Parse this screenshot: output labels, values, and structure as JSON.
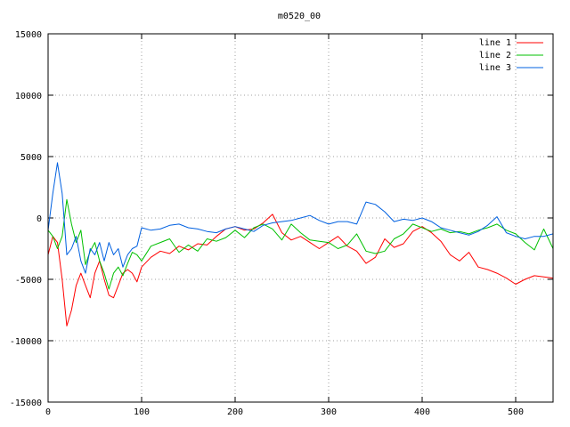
{
  "chart_data": {
    "type": "line",
    "title": "m0520_00",
    "xlabel": "",
    "ylabel": "",
    "xlim": [
      0,
      540
    ],
    "ylim": [
      -15000,
      15000
    ],
    "x_ticks": [
      0,
      100,
      200,
      300,
      400,
      500
    ],
    "y_ticks": [
      -15000,
      -10000,
      -5000,
      0,
      5000,
      10000,
      15000
    ],
    "grid": true,
    "legend_position": "top-right",
    "series": [
      {
        "name": "line 1",
        "color": "#ff0000",
        "x": [
          0,
          5,
          10,
          15,
          20,
          25,
          30,
          35,
          40,
          45,
          50,
          55,
          60,
          65,
          70,
          75,
          80,
          85,
          90,
          95,
          100,
          110,
          120,
          130,
          140,
          150,
          160,
          170,
          180,
          190,
          200,
          210,
          220,
          230,
          240,
          250,
          260,
          270,
          280,
          290,
          300,
          310,
          320,
          330,
          340,
          350,
          360,
          370,
          380,
          390,
          400,
          410,
          420,
          430,
          440,
          450,
          460,
          470,
          480,
          490,
          500,
          510,
          520,
          530,
          540
        ],
        "values": [
          -3000,
          -1500,
          -2000,
          -5000,
          -8800,
          -7500,
          -5500,
          -4500,
          -5500,
          -6500,
          -4500,
          -3500,
          -5000,
          -6300,
          -6500,
          -5500,
          -4500,
          -4200,
          -4500,
          -5200,
          -4000,
          -3200,
          -2700,
          -2900,
          -2300,
          -2600,
          -2100,
          -2200,
          -1500,
          -900,
          -700,
          -1000,
          -900,
          -400,
          300,
          -1200,
          -1800,
          -1500,
          -2000,
          -2500,
          -2000,
          -1500,
          -2300,
          -2700,
          -3700,
          -3200,
          -1700,
          -2400,
          -2100,
          -1100,
          -700,
          -1200,
          -1900,
          -3000,
          -3500,
          -2800,
          -4000,
          -4200,
          -4500,
          -4900,
          -5400,
          -5000,
          -4700,
          -4800,
          -4900
        ]
      },
      {
        "name": "line 2",
        "color": "#00c000",
        "x": [
          0,
          5,
          10,
          15,
          20,
          25,
          30,
          35,
          40,
          45,
          50,
          55,
          60,
          65,
          70,
          75,
          80,
          85,
          90,
          95,
          100,
          110,
          120,
          130,
          140,
          150,
          160,
          170,
          180,
          190,
          200,
          210,
          220,
          230,
          240,
          250,
          260,
          270,
          280,
          290,
          300,
          310,
          320,
          330,
          340,
          350,
          360,
          370,
          380,
          390,
          400,
          410,
          420,
          430,
          440,
          450,
          460,
          470,
          480,
          490,
          500,
          510,
          520,
          530,
          540
        ],
        "values": [
          -1000,
          -1500,
          -2500,
          -1500,
          1500,
          -500,
          -2000,
          -1000,
          -3800,
          -2700,
          -2000,
          -3500,
          -4500,
          -5800,
          -4500,
          -4000,
          -4700,
          -3700,
          -2800,
          -3000,
          -3500,
          -2300,
          -2000,
          -1700,
          -2800,
          -2200,
          -2700,
          -1700,
          -1900,
          -1600,
          -1000,
          -1600,
          -800,
          -500,
          -900,
          -1800,
          -500,
          -1200,
          -1800,
          -1900,
          -2000,
          -2500,
          -2200,
          -1300,
          -2700,
          -2900,
          -2700,
          -1700,
          -1300,
          -500,
          -800,
          -1100,
          -900,
          -1200,
          -1100,
          -1300,
          -1000,
          -800,
          -500,
          -1000,
          -1300,
          -2000,
          -2600,
          -900,
          -2500
        ]
      },
      {
        "name": "line 3",
        "color": "#0060e0",
        "x": [
          0,
          5,
          10,
          15,
          20,
          25,
          30,
          35,
          40,
          45,
          50,
          55,
          60,
          65,
          70,
          75,
          80,
          85,
          90,
          95,
          100,
          110,
          120,
          130,
          140,
          150,
          160,
          170,
          180,
          190,
          200,
          210,
          220,
          230,
          240,
          250,
          260,
          270,
          280,
          290,
          300,
          310,
          320,
          330,
          340,
          350,
          360,
          370,
          380,
          390,
          400,
          410,
          420,
          430,
          440,
          450,
          460,
          470,
          480,
          490,
          500,
          510,
          520,
          530,
          540
        ],
        "values": [
          -1000,
          2000,
          4500,
          2000,
          -3000,
          -2500,
          -1500,
          -3500,
          -4500,
          -2500,
          -3000,
          -2000,
          -3500,
          -2000,
          -3000,
          -2500,
          -4000,
          -3000,
          -2500,
          -2300,
          -800,
          -1000,
          -900,
          -600,
          -500,
          -800,
          -900,
          -1100,
          -1200,
          -900,
          -700,
          -900,
          -1100,
          -600,
          -400,
          -300,
          -200,
          0,
          200,
          -200,
          -500,
          -300,
          -300,
          -500,
          1300,
          1100,
          500,
          -300,
          -100,
          -200,
          0,
          -300,
          -800,
          -1000,
          -1200,
          -1400,
          -1100,
          -600,
          100,
          -1200,
          -1500,
          -1700,
          -1500,
          -1500,
          -1300
        ]
      }
    ]
  }
}
